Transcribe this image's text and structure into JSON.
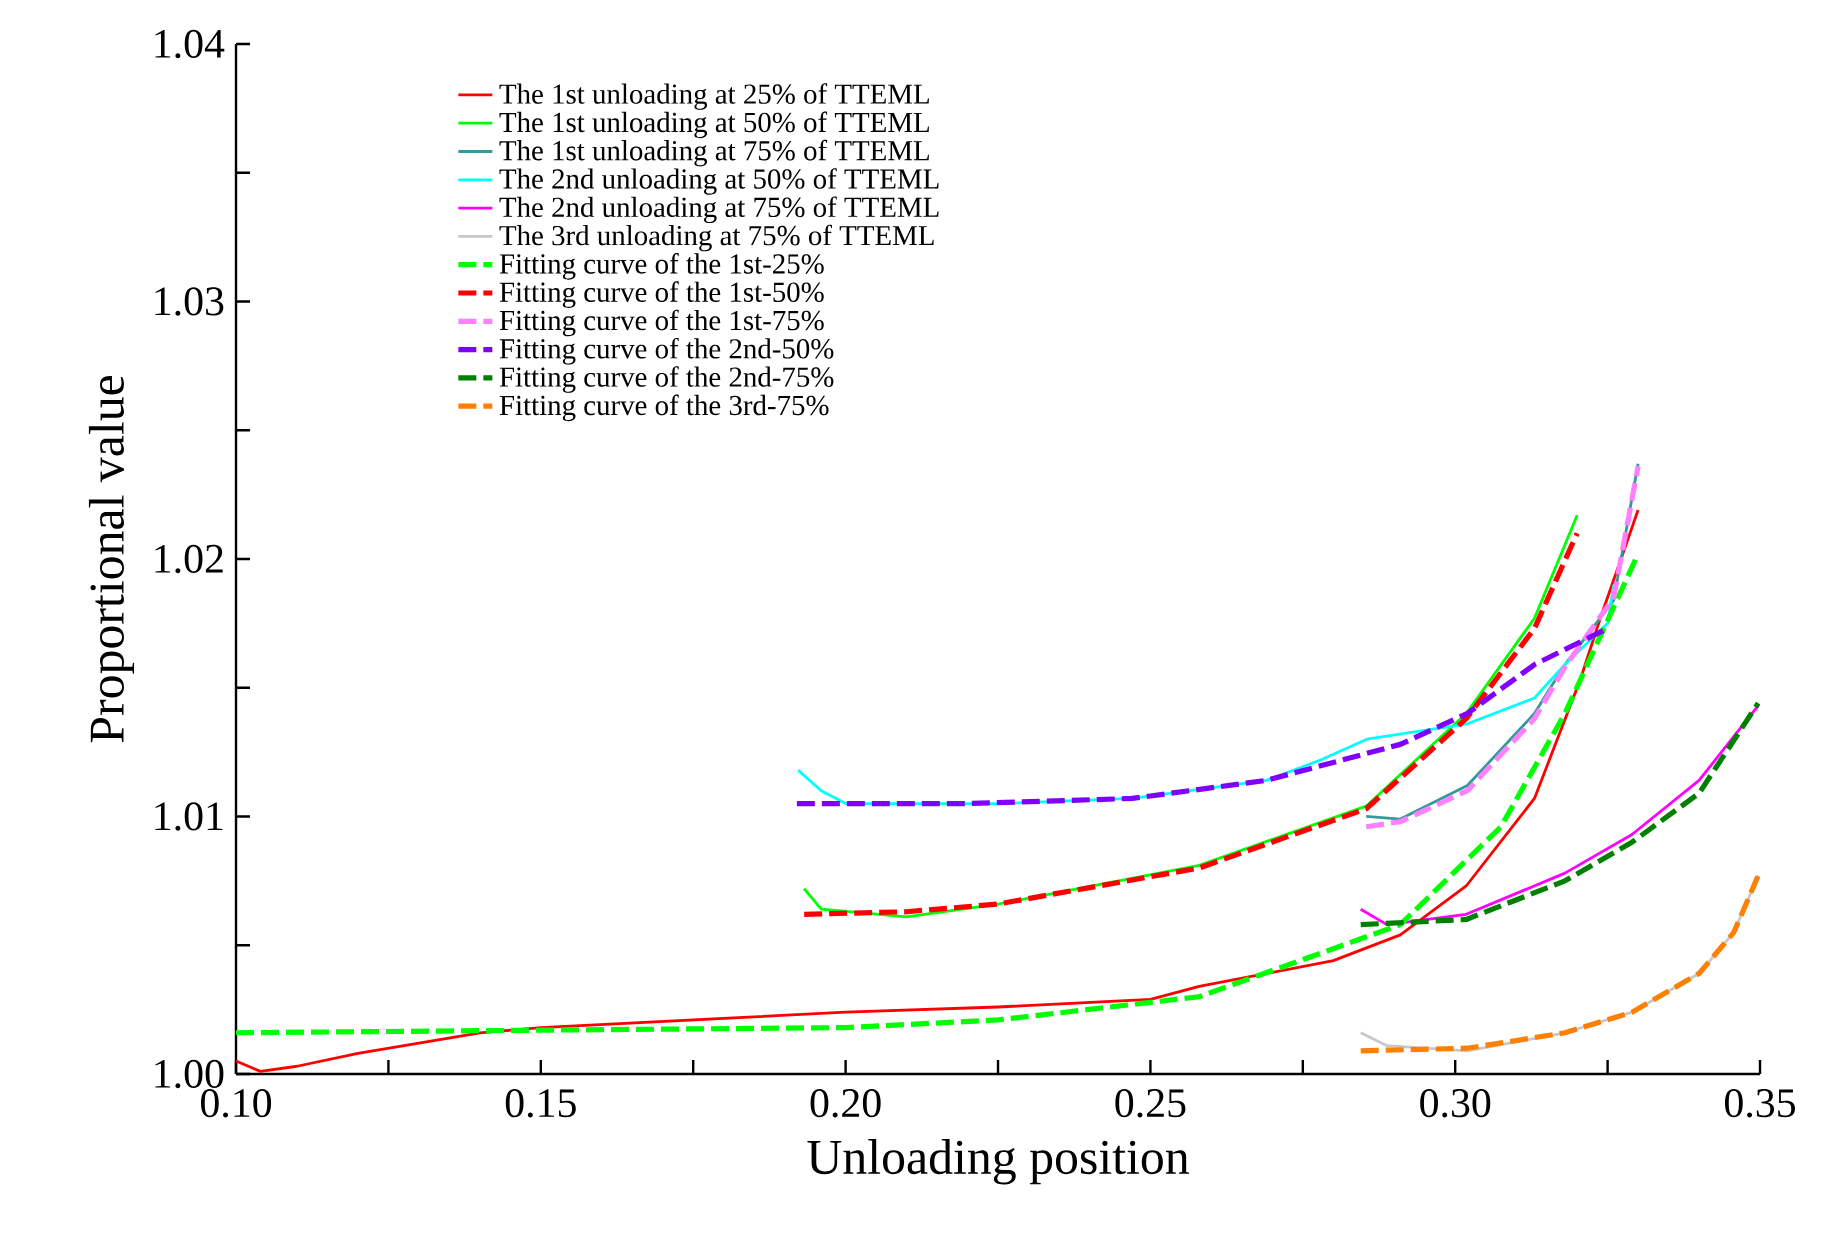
{
  "chart_data": {
    "type": "line",
    "xlabel": "Unloading position",
    "ylabel": "Proportional value",
    "xlim": [
      0.1,
      0.35
    ],
    "ylim": [
      1.0,
      1.04
    ],
    "xticks": [
      {
        "value": 0.1,
        "label": "0.10"
      },
      {
        "value": 0.125,
        "label": null
      },
      {
        "value": 0.15,
        "label": "0.15"
      },
      {
        "value": 0.175,
        "label": null
      },
      {
        "value": 0.2,
        "label": "0.20"
      },
      {
        "value": 0.225,
        "label": null
      },
      {
        "value": 0.25,
        "label": "0.25"
      },
      {
        "value": 0.275,
        "label": null
      },
      {
        "value": 0.3,
        "label": "0.30"
      },
      {
        "value": 0.325,
        "label": null
      },
      {
        "value": 0.35,
        "label": "0.35"
      }
    ],
    "yticks": [
      {
        "value": 1.0,
        "label": "1.00"
      },
      {
        "value": 1.005,
        "label": null
      },
      {
        "value": 1.01,
        "label": "1.01"
      },
      {
        "value": 1.015,
        "label": null
      },
      {
        "value": 1.02,
        "label": "1.02"
      },
      {
        "value": 1.025,
        "label": null
      },
      {
        "value": 1.03,
        "label": "1.03"
      },
      {
        "value": 1.035,
        "label": null
      },
      {
        "value": 1.04,
        "label": "1.04"
      }
    ],
    "legend": "top left",
    "grid": false,
    "series": [
      {
        "name": "The 1st unloading at 25% of  TTEML",
        "color": "#ff0000",
        "line_style": "solid",
        "x": [
          0.1,
          0.104,
          0.11,
          0.12,
          0.13,
          0.14,
          0.15,
          0.175,
          0.2,
          0.225,
          0.25,
          0.258,
          0.28,
          0.291,
          0.3018,
          0.313,
          0.3205,
          0.3238,
          0.33
        ],
        "values": [
          1.0005,
          1.0001,
          1.0003,
          1.0008,
          1.0012,
          1.0016,
          1.0018,
          1.0021,
          1.0024,
          1.0026,
          1.0029,
          1.0034,
          1.0044,
          1.0054,
          1.0073,
          1.0107,
          1.0153,
          1.0177,
          1.0219
        ]
      },
      {
        "name": "The 1st unloading at 50% of  TTEML",
        "color": "#00ff00",
        "line_style": "solid",
        "x": [
          0.1932,
          0.196,
          0.21,
          0.225,
          0.258,
          0.2854,
          0.3018,
          0.313,
          0.32
        ],
        "values": [
          1.0072,
          1.0064,
          1.0061,
          1.0066,
          1.0081,
          1.0104,
          1.014,
          1.0177,
          1.0217
        ]
      },
      {
        "name": "The 1st unloading at 75% of  TTEML",
        "color": "#339999",
        "line_style": "solid",
        "x": [
          0.2854,
          0.291,
          0.302,
          0.313,
          0.318,
          0.326,
          0.33
        ],
        "values": [
          1.01,
          1.0099,
          1.0112,
          1.014,
          1.0159,
          1.0184,
          1.0237
        ]
      },
      {
        "name": "The 2nd unloading at 50% of  TTEML",
        "color": "#00ffff",
        "line_style": "solid",
        "x": [
          0.1922,
          0.196,
          0.2,
          0.225,
          0.247,
          0.269,
          0.278,
          0.2855,
          0.302,
          0.313,
          0.318,
          0.325,
          0.326
        ],
        "values": [
          1.0118,
          1.011,
          1.0105,
          1.0105,
          1.0107,
          1.0114,
          1.0122,
          1.013,
          1.0136,
          1.0146,
          1.0159,
          1.0175,
          1.019
        ]
      },
      {
        "name": "The 2nd unloading at 75% of  TTEML",
        "color": "#ff00ff",
        "line_style": "solid",
        "x": [
          0.2845,
          0.2888,
          0.3018,
          0.318,
          0.329,
          0.34,
          0.3497
        ],
        "values": [
          1.0064,
          1.0058,
          1.0062,
          1.0078,
          1.0093,
          1.0114,
          1.0143
        ]
      },
      {
        "name": "The 3rd unloading at 75% of  TTEML",
        "color": "#c8c8c8",
        "line_style": "solid",
        "x": [
          0.2845,
          0.2888,
          0.302,
          0.318,
          0.329,
          0.34,
          0.3457,
          0.3497
        ],
        "values": [
          1.0016,
          1.0011,
          1.0009,
          1.0016,
          1.0024,
          1.0039,
          1.0055,
          1.0077
        ]
      },
      {
        "name": "Fitting curve of the 1st-25%",
        "color": "#00ff00",
        "line_style": "dashed",
        "x": [
          0.1,
          0.15,
          0.2,
          0.225,
          0.258,
          0.291,
          0.3075,
          0.318,
          0.33
        ],
        "values": [
          1.0016,
          1.0017,
          1.0018,
          1.0021,
          1.003,
          1.0058,
          1.0096,
          1.014,
          1.0202
        ]
      },
      {
        "name": "Fitting curve of the 1st-50%",
        "color": "#ff0000",
        "line_style": "dashed",
        "x": [
          0.1932,
          0.21,
          0.225,
          0.258,
          0.2854,
          0.3018,
          0.313,
          0.32
        ],
        "values": [
          1.0062,
          1.0063,
          1.0066,
          1.008,
          1.0103,
          1.0138,
          1.0173,
          1.021
        ]
      },
      {
        "name": "Fitting curve of the 1st-75%",
        "color": "#ff80ff",
        "line_style": "dashed",
        "x": [
          0.2854,
          0.291,
          0.302,
          0.313,
          0.318,
          0.326,
          0.33
        ],
        "values": [
          1.0096,
          1.0098,
          1.011,
          1.0138,
          1.0158,
          1.0185,
          1.0236
        ]
      },
      {
        "name": "Fitting curve of the 2nd-50%",
        "color": "#8000ff",
        "line_style": "dashed",
        "x": [
          0.192,
          0.22,
          0.247,
          0.269,
          0.291,
          0.302,
          0.313,
          0.325
        ],
        "values": [
          1.0105,
          1.0105,
          1.0107,
          1.0114,
          1.0128,
          1.014,
          1.0159,
          1.0173
        ]
      },
      {
        "name": "Fitting curve of the 2nd-75%",
        "color": "#008000",
        "line_style": "dashed",
        "x": [
          0.2845,
          0.3018,
          0.318,
          0.329,
          0.34,
          0.3497
        ],
        "values": [
          1.0058,
          1.006,
          1.0075,
          1.009,
          1.0109,
          1.0144
        ]
      },
      {
        "name": "Fitting curve of the 3rd-75%",
        "color": "#ff8000",
        "line_style": "dashed",
        "x": [
          0.2845,
          0.302,
          0.318,
          0.329,
          0.34,
          0.3457,
          0.3497
        ],
        "values": [
          1.0009,
          1.001,
          1.0016,
          1.0024,
          1.0039,
          1.0055,
          1.0077
        ]
      }
    ]
  }
}
